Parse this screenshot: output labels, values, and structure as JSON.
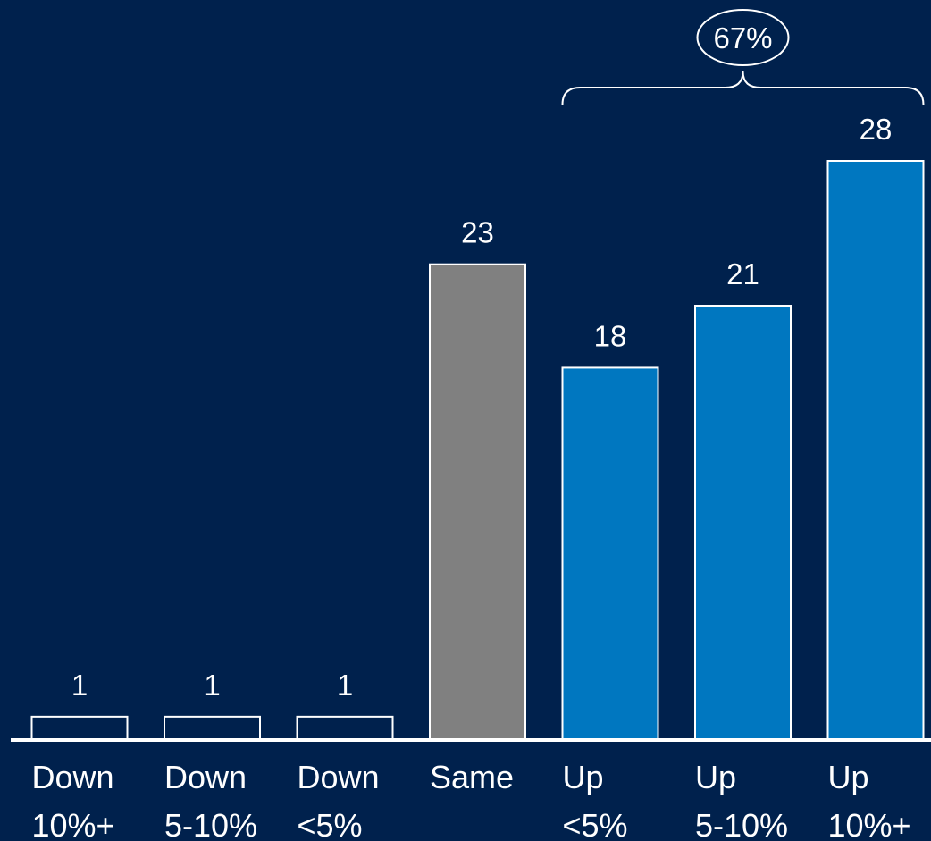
{
  "chart_data": {
    "type": "bar",
    "categories": [
      [
        "Down",
        "10%+"
      ],
      [
        "Down",
        "5-10%"
      ],
      [
        "Down",
        "<5%"
      ],
      [
        "Same"
      ],
      [
        "Up",
        "<5%"
      ],
      [
        "Up",
        "5-10%"
      ],
      [
        "Up",
        "10%+"
      ]
    ],
    "values": [
      1,
      1,
      1,
      23,
      18,
      21,
      28
    ],
    "data_labels": [
      "1",
      "1",
      "1",
      "23",
      "18",
      "21",
      "28"
    ],
    "ylim": [
      0,
      28
    ],
    "grid": false,
    "legend": "none",
    "annotation": {
      "text": "67%",
      "spans_categories": [
        4,
        6
      ]
    },
    "colors": {
      "background": "#00214d",
      "bar_down": "#00214d",
      "bar_same": "#808080",
      "bar_up": "#0077c0",
      "bar_outline": "#ffffff",
      "axis": "#ffffff",
      "text": "#ffffff"
    }
  }
}
